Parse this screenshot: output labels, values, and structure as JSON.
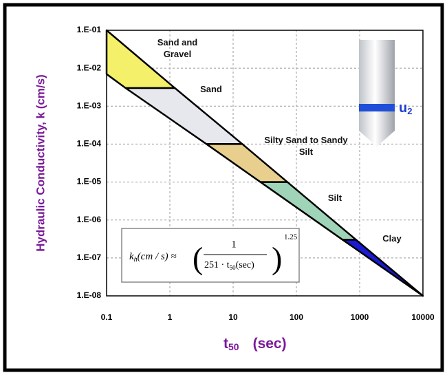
{
  "chart_data": {
    "type": "region",
    "y_label": "Hydraulic Conductivity, k (cm/s)",
    "x_label": {
      "main": "t",
      "sub": "50",
      "unit": "(sec)"
    },
    "log_x": true,
    "log_y": true,
    "grid": true,
    "xlim": [
      0.1,
      10000
    ],
    "ylim": [
      1e-08,
      0.1
    ],
    "xticks": [
      0.1,
      1,
      10,
      100,
      1000,
      10000
    ],
    "yticks": [
      {
        "value": 1e-08,
        "label": "1.E-08"
      },
      {
        "value": 1e-07,
        "label": "1.E-07"
      },
      {
        "value": 1e-06,
        "label": "1.E-06"
      },
      {
        "value": 1e-05,
        "label": "1.E-05"
      },
      {
        "value": 0.0001,
        "label": "1.E-04"
      },
      {
        "value": 0.001,
        "label": "1.E-03"
      },
      {
        "value": 0.01,
        "label": "1.E-02"
      },
      {
        "value": 0.1,
        "label": "1.E-01"
      }
    ],
    "series": [
      {
        "name": "Sand and Gravel",
        "color": "#f4f06a",
        "x": [
          0.1,
          1.2,
          0.2,
          0.1
        ],
        "y": [
          0.1,
          0.003,
          0.003,
          0.007
        ]
      },
      {
        "name": "Sand",
        "color": "#e6e8ee",
        "x": [
          1.2,
          14,
          3.8,
          0.2
        ],
        "y": [
          0.003,
          0.0001,
          0.0001,
          0.003
        ]
      },
      {
        "name": "Silty Sand to Sandy Silt",
        "color": "#e8cf8e",
        "x": [
          14,
          72,
          27,
          3.8
        ],
        "y": [
          0.0001,
          1e-05,
          1e-05,
          0.0001
        ]
      },
      {
        "name": "Silt",
        "color": "#9fd4b8",
        "x": [
          72,
          880,
          540,
          27
        ],
        "y": [
          1e-05,
          3e-07,
          3e-07,
          1e-05
        ]
      },
      {
        "name": "Clay",
        "color": "#1a1ad0",
        "x": [
          880,
          10000,
          540
        ],
        "y": [
          3e-07,
          1e-08,
          3e-07
        ]
      }
    ],
    "annotation": {
      "k": "k",
      "k_sub": "h",
      "lhs": "(cm / s) ≈",
      "numerator": "1",
      "denominator": "251 · t",
      "den_sub": "50",
      "den_unit": "(sec)",
      "exponent": "1.25"
    },
    "probe_label": {
      "main": "u",
      "sub": "2"
    }
  }
}
